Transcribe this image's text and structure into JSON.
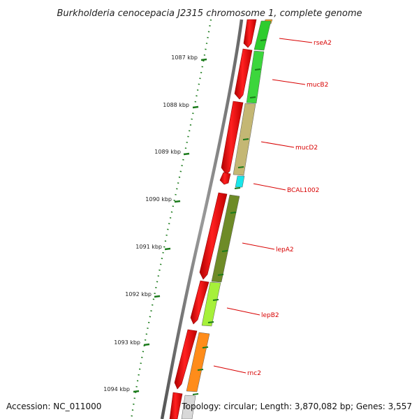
{
  "title": "Burkholderia cenocepacia J2315 chromosome 1, complete genome",
  "footer": {
    "accession": "Accession: NC_011000",
    "topology": "Topology: circular; Length: 3,870,082 bp; Genes: 3,557"
  },
  "scale": {
    "ticks": [
      "1087 kbp",
      "1088 kbp",
      "1089 kbp",
      "1090 kbp",
      "1091 kbp",
      "1092 kbp",
      "1093 kbp",
      "1094 kbp"
    ]
  },
  "genes": [
    {
      "name": "rseA2",
      "color": "#2ecc2e"
    },
    {
      "name": "mucB2",
      "color": "#3cd63c"
    },
    {
      "name": "mucD2",
      "color": "#c4b774"
    },
    {
      "name": "BCAL1002",
      "color": "#19e6ea"
    },
    {
      "name": "lepA2",
      "color": "#6e8b27"
    },
    {
      "name": "lepB2",
      "color": "#a6f03a"
    },
    {
      "name": "rnc2",
      "color": "#ff8c1a"
    }
  ],
  "colors": {
    "cds_strand": "#ff1010",
    "tick": "#1a7a1a",
    "backbone": "#808080",
    "label": "#d80000"
  }
}
